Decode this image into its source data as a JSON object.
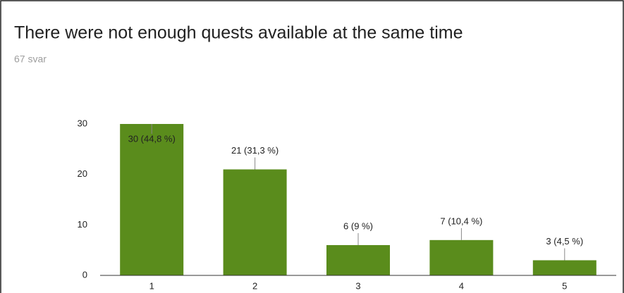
{
  "chart_data": {
    "type": "bar",
    "title": "There were not enough quests available at the same time",
    "subtitle": "67 svar",
    "categories": [
      "1",
      "2",
      "3",
      "4",
      "5"
    ],
    "values": [
      30,
      21,
      6,
      7,
      3
    ],
    "value_labels": [
      "30 (44,8 %)",
      "21 (31,3 %)",
      "6 (9 %)",
      "7 (10,4 %)",
      "3 (4,5 %)"
    ],
    "color": "#5a8c1c",
    "ylim": [
      0,
      30
    ],
    "yticks": [
      0,
      10,
      20,
      30
    ],
    "grid": false
  }
}
